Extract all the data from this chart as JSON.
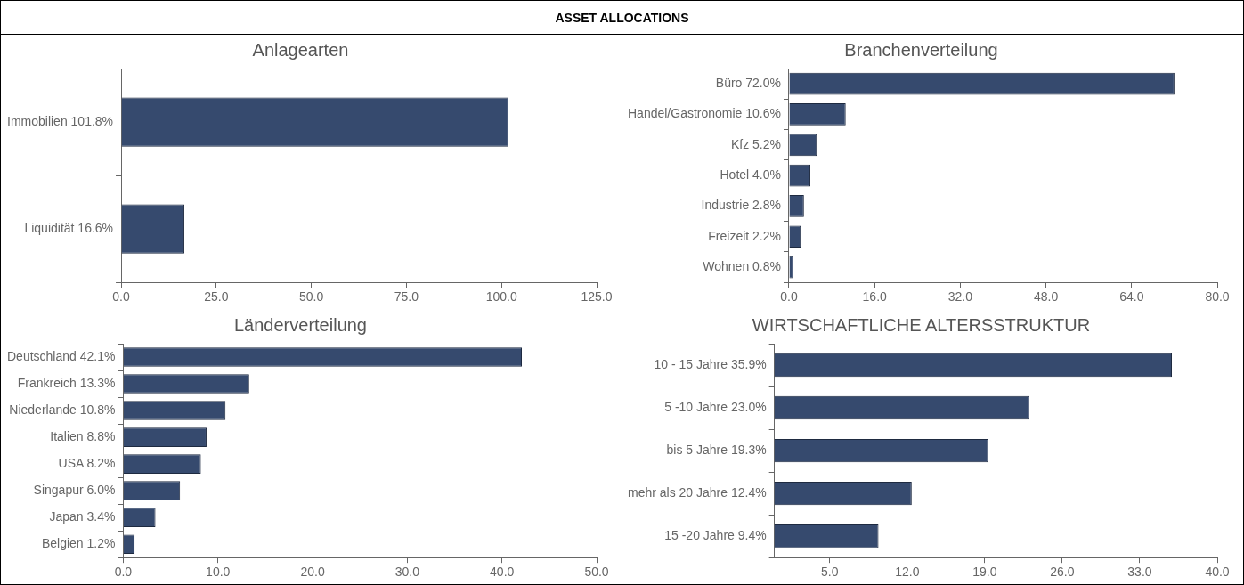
{
  "chart_data": [
    {
      "type": "other",
      "title": "ASSET ALLOCATIONS"
    },
    {
      "type": "bar",
      "orientation": "horizontal",
      "title": "Anlagearten",
      "categories": [
        "Immobilien 101.8%",
        "Liquidität 16.6%"
      ],
      "values": [
        101.8,
        16.6
      ],
      "color": "#364a6e",
      "xlim": [
        0,
        125
      ],
      "xticks": [
        {
          "value": 0,
          "label": "0.0"
        },
        {
          "value": 25,
          "label": "25.0"
        },
        {
          "value": 50,
          "label": "50.0"
        },
        {
          "value": 75,
          "label": "75.0"
        },
        {
          "value": 100,
          "label": "100.0"
        },
        {
          "value": 125,
          "label": "125.0"
        }
      ],
      "grid": false
    },
    {
      "type": "bar",
      "orientation": "horizontal",
      "title": "Branchenverteilung",
      "categories": [
        "Büro 72.0%",
        "Handel/Gastronomie 10.6%",
        "Kfz 5.2%",
        "Hotel 4.0%",
        "Industrie 2.8%",
        "Freizeit 2.2%",
        "Wohnen 0.8%"
      ],
      "values": [
        72.0,
        10.6,
        5.2,
        4.0,
        2.8,
        2.2,
        0.8
      ],
      "color": "#364a6e",
      "xlim": [
        0,
        80
      ],
      "xticks": [
        {
          "value": 0,
          "label": "0.0"
        },
        {
          "value": 16,
          "label": "16.0"
        },
        {
          "value": 32,
          "label": "32.0"
        },
        {
          "value": 48,
          "label": "48.0"
        },
        {
          "value": 64,
          "label": "64.0"
        },
        {
          "value": 80,
          "label": "80.0"
        }
      ],
      "grid": false
    },
    {
      "type": "bar",
      "orientation": "horizontal",
      "title": "Länderverteilung",
      "categories": [
        "Deutschland 42.1%",
        "Frankreich 13.3%",
        "Niederlande 10.8%",
        "Italien 8.8%",
        "USA 8.2%",
        "Singapur 6.0%",
        "Japan 3.4%",
        "Belgien 1.2%"
      ],
      "values": [
        42.1,
        13.3,
        10.8,
        8.8,
        8.2,
        6.0,
        3.4,
        1.2
      ],
      "color": "#364a6e",
      "xlim": [
        0,
        50
      ],
      "xticks": [
        {
          "value": 0,
          "label": "0.0"
        },
        {
          "value": 10,
          "label": "10.0"
        },
        {
          "value": 20,
          "label": "20.0"
        },
        {
          "value": 30,
          "label": "30.0"
        },
        {
          "value": 40,
          "label": "40.0"
        },
        {
          "value": 50,
          "label": "50.0"
        }
      ],
      "grid": false
    },
    {
      "type": "bar",
      "orientation": "horizontal",
      "title": "WIRTSCHAFTLICHE ALTERSSTRUKTUR",
      "categories": [
        "10 - 15 Jahre 35.9%",
        "5 -10 Jahre 23.0%",
        "bis 5 Jahre 19.3%",
        "mehr als 20 Jahre 12.4%",
        "15 -20 Jahre 9.4%"
      ],
      "values": [
        35.9,
        23.0,
        19.3,
        12.4,
        9.4
      ],
      "color": "#364a6e",
      "xlim": [
        0,
        40
      ],
      "xticks": [
        {
          "value": 5,
          "label": "5.0"
        },
        {
          "value": 12,
          "label": "12.0"
        },
        {
          "value": 19,
          "label": "19.0"
        },
        {
          "value": 26,
          "label": "26.0"
        },
        {
          "value": 33,
          "label": "33.0"
        },
        {
          "value": 40,
          "label": "40.0"
        }
      ],
      "grid": false
    }
  ]
}
